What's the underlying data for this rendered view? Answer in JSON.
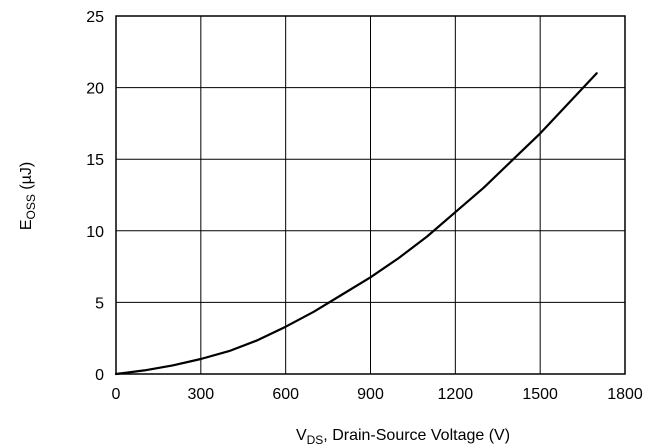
{
  "chart_data": {
    "type": "line",
    "title": "",
    "xlabel": {
      "main": "V",
      "sub": "DS",
      "rest": ", Drain-Source Voltage (V)"
    },
    "ylabel": {
      "main": "E",
      "sub": "OSS",
      "rest": " (µJ)"
    },
    "xlim": [
      0,
      1800
    ],
    "ylim": [
      0,
      25
    ],
    "x_ticks": [
      0,
      300,
      600,
      900,
      1200,
      1500,
      1800
    ],
    "y_ticks": [
      0,
      5,
      10,
      15,
      20,
      25
    ],
    "x_tick_labels": [
      "0",
      "300",
      "600",
      "900",
      "1200",
      "1500",
      "1800"
    ],
    "y_tick_labels": [
      "0",
      "5",
      "10",
      "15",
      "20",
      "25"
    ],
    "grid": true,
    "series": [
      {
        "color": "#000000",
        "x": [
          0,
          100,
          200,
          300,
          400,
          500,
          600,
          700,
          800,
          900,
          1000,
          1100,
          1200,
          1300,
          1400,
          1500,
          1600,
          1700
        ],
        "y": [
          0,
          0.25,
          0.6,
          1.05,
          1.6,
          2.35,
          3.3,
          4.35,
          5.55,
          6.75,
          8.1,
          9.6,
          11.3,
          13.0,
          14.9,
          16.8,
          18.9,
          21.0
        ]
      }
    ]
  }
}
